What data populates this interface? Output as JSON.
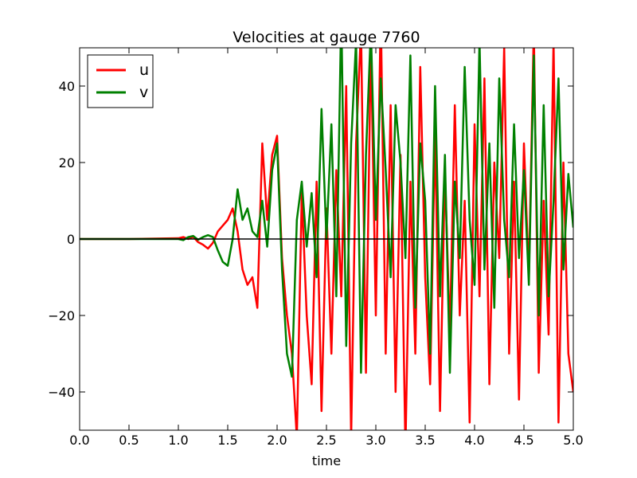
{
  "chart_data": {
    "type": "line",
    "title": "Velocities at gauge 7760",
    "xlabel": "time",
    "ylabel": "",
    "xlim": [
      0,
      5
    ],
    "ylim": [
      -50,
      50
    ],
    "x_ticks": [
      0.0,
      0.5,
      1.0,
      1.5,
      2.0,
      2.5,
      3.0,
      3.5,
      4.0,
      4.5,
      5.0
    ],
    "x_tick_labels": [
      "0.0",
      "0.5",
      "1.0",
      "1.5",
      "2.0",
      "2.5",
      "3.0",
      "3.5",
      "4.0",
      "4.5",
      "5.0"
    ],
    "y_ticks": [
      -40,
      -20,
      0,
      20,
      40
    ],
    "y_tick_labels": [
      "−40",
      "−20",
      "0",
      "20",
      "40"
    ],
    "grid": false,
    "zero_line": true,
    "legend": {
      "placement": "top-left"
    },
    "series": [
      {
        "name": "u",
        "color": "#ff0000",
        "x": [
          0.0,
          0.5,
          1.0,
          1.05,
          1.1,
          1.15,
          1.2,
          1.25,
          1.3,
          1.35,
          1.4,
          1.45,
          1.5,
          1.55,
          1.6,
          1.65,
          1.7,
          1.75,
          1.8,
          1.85,
          1.9,
          1.95,
          2.0,
          2.05,
          2.1,
          2.15,
          2.2,
          2.25,
          2.3,
          2.35,
          2.4,
          2.45,
          2.5,
          2.55,
          2.6,
          2.65,
          2.7,
          2.75,
          2.8,
          2.85,
          2.9,
          2.95,
          3.0,
          3.05,
          3.1,
          3.15,
          3.2,
          3.25,
          3.3,
          3.35,
          3.4,
          3.45,
          3.5,
          3.55,
          3.6,
          3.65,
          3.7,
          3.75,
          3.8,
          3.85,
          3.9,
          3.95,
          4.0,
          4.05,
          4.1,
          4.15,
          4.2,
          4.25,
          4.3,
          4.35,
          4.4,
          4.45,
          4.5,
          4.55,
          4.6,
          4.65,
          4.7,
          4.75,
          4.8,
          4.85,
          4.9,
          4.95,
          5.0
        ],
        "y": [
          0,
          0,
          0.2,
          0.5,
          0.0,
          0.6,
          -0.8,
          -1.5,
          -2.5,
          -1.0,
          2.0,
          3.5,
          5.0,
          8.0,
          2.0,
          -8.0,
          -12.0,
          -10.0,
          -18.0,
          25.0,
          5.0,
          22.0,
          27.0,
          -5.0,
          -20.0,
          -30.0,
          -52.0,
          12.0,
          -20.0,
          -38.0,
          15.0,
          -45.0,
          8.0,
          -30.0,
          18.0,
          -15.0,
          40.0,
          -52.0,
          25.0,
          55.0,
          -35.0,
          52.0,
          -20.0,
          60.0,
          -30.0,
          35.0,
          -40.0,
          22.0,
          -55.0,
          15.0,
          -30.0,
          45.0,
          -10.0,
          -38.0,
          28.0,
          -45.0,
          18.0,
          -25.0,
          35.0,
          -20.0,
          10.0,
          -48.0,
          30.0,
          -15.0,
          42.0,
          -38.0,
          20.0,
          -5.0,
          50.0,
          -30.0,
          15.0,
          -42.0,
          25.0,
          -10.0,
          55.0,
          -35.0,
          10.0,
          -25.0,
          52.0,
          -48.0,
          20.0,
          -30.0,
          -40.0
        ]
      },
      {
        "name": "v",
        "color": "#008000",
        "x": [
          0.0,
          0.5,
          1.0,
          1.05,
          1.1,
          1.15,
          1.2,
          1.25,
          1.3,
          1.35,
          1.4,
          1.45,
          1.5,
          1.55,
          1.6,
          1.65,
          1.7,
          1.75,
          1.8,
          1.85,
          1.9,
          1.95,
          2.0,
          2.05,
          2.1,
          2.15,
          2.2,
          2.25,
          2.3,
          2.35,
          2.4,
          2.45,
          2.5,
          2.55,
          2.6,
          2.65,
          2.7,
          2.75,
          2.8,
          2.85,
          2.9,
          2.95,
          3.0,
          3.05,
          3.1,
          3.15,
          3.2,
          3.25,
          3.3,
          3.35,
          3.4,
          3.45,
          3.5,
          3.55,
          3.6,
          3.65,
          3.7,
          3.75,
          3.8,
          3.85,
          3.9,
          3.95,
          4.0,
          4.05,
          4.1,
          4.15,
          4.2,
          4.25,
          4.3,
          4.35,
          4.4,
          4.45,
          4.5,
          4.55,
          4.6,
          4.65,
          4.7,
          4.75,
          4.8,
          4.85,
          4.9,
          4.95,
          5.0
        ],
        "y": [
          0,
          0,
          0,
          -0.3,
          0.5,
          0.8,
          -0.2,
          0.5,
          1.0,
          0.5,
          -3.0,
          -6.0,
          -7.0,
          0.0,
          13.0,
          5.0,
          8.0,
          2.0,
          0.5,
          10.0,
          -2.0,
          18.0,
          25.0,
          -8.0,
          -30.0,
          -36.0,
          5.0,
          15.0,
          -2.0,
          12.0,
          -10.0,
          34.0,
          0.0,
          30.0,
          -15.0,
          60.0,
          -28.0,
          25.0,
          52.0,
          -35.0,
          22.0,
          55.0,
          5.0,
          42.0,
          18.0,
          -10.0,
          35.0,
          20.0,
          -5.0,
          48.0,
          -18.0,
          25.0,
          10.0,
          -30.0,
          40.0,
          -15.0,
          22.0,
          -35.0,
          15.0,
          -5.0,
          45.0,
          5.0,
          -12.0,
          52.0,
          -8.0,
          25.0,
          -18.0,
          42.0,
          5.0,
          -10.0,
          30.0,
          -5.0,
          18.0,
          -12.0,
          48.0,
          -20.0,
          35.0,
          -15.0,
          10.0,
          42.0,
          -8.0,
          17.0,
          3.0
        ]
      }
    ]
  }
}
